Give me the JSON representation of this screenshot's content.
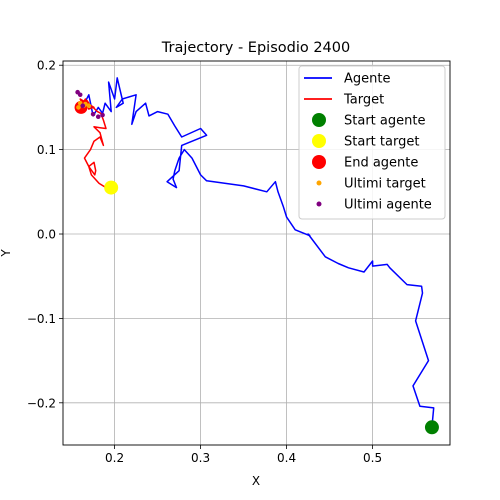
{
  "chart_data": {
    "type": "line",
    "title": "Trajectory - Episodio 2400",
    "xlabel": "X",
    "ylabel": "Y",
    "xlim": [
      0.14,
      0.59
    ],
    "ylim": [
      -0.25,
      0.205
    ],
    "xticks": [
      0.2,
      0.3,
      0.4,
      0.5
    ],
    "xtick_labels": [
      "0.2",
      "0.3",
      "0.4",
      "0.5"
    ],
    "yticks": [
      -0.2,
      -0.1,
      0.0,
      0.1,
      0.2
    ],
    "ytick_labels": [
      "−0.2",
      "−0.1",
      "0.0",
      "0.1",
      "0.2"
    ],
    "grid": true,
    "legend_position": "upper-right",
    "legend": [
      {
        "label": "Agente",
        "kind": "line",
        "color": "#0000ff"
      },
      {
        "label": "Target",
        "kind": "line",
        "color": "#ff0000"
      },
      {
        "label": "Start agente",
        "kind": "marker",
        "color": "#008000",
        "size": "large"
      },
      {
        "label": "Start target",
        "kind": "marker",
        "color": "#ffff00",
        "size": "large"
      },
      {
        "label": "End agente",
        "kind": "marker",
        "color": "#ff0000",
        "size": "large"
      },
      {
        "label": "Ultimi target",
        "kind": "marker",
        "color": "#ffa500",
        "size": "small"
      },
      {
        "label": "Ultimi agente",
        "kind": "marker",
        "color": "#800080",
        "size": "small"
      }
    ],
    "series": [
      {
        "name": "Agente",
        "color": "#0000ff",
        "points": [
          [
            0.569,
            -0.229
          ],
          [
            0.571,
            -0.206
          ],
          [
            0.555,
            -0.204
          ],
          [
            0.547,
            -0.18
          ],
          [
            0.565,
            -0.15
          ],
          [
            0.55,
            -0.103
          ],
          [
            0.558,
            -0.07
          ],
          [
            0.557,
            -0.062
          ],
          [
            0.54,
            -0.06
          ],
          [
            0.52,
            -0.04
          ],
          [
            0.517,
            -0.036
          ],
          [
            0.5,
            -0.038
          ],
          [
            0.5,
            -0.032
          ],
          [
            0.49,
            -0.045
          ],
          [
            0.472,
            -0.04
          ],
          [
            0.46,
            -0.035
          ],
          [
            0.445,
            -0.027
          ],
          [
            0.425,
            0.0
          ],
          [
            0.427,
            -0.002
          ],
          [
            0.41,
            0.005
          ],
          [
            0.4,
            0.02
          ],
          [
            0.396,
            0.033
          ],
          [
            0.39,
            0.05
          ],
          [
            0.387,
            0.062
          ],
          [
            0.377,
            0.05
          ],
          [
            0.35,
            0.057
          ],
          [
            0.307,
            0.063
          ],
          [
            0.3,
            0.07
          ],
          [
            0.29,
            0.09
          ],
          [
            0.281,
            0.1
          ],
          [
            0.275,
            0.09
          ],
          [
            0.27,
            0.075
          ],
          [
            0.268,
            0.065
          ],
          [
            0.272,
            0.055
          ],
          [
            0.261,
            0.062
          ],
          [
            0.275,
            0.075
          ],
          [
            0.278,
            0.105
          ],
          [
            0.307,
            0.117
          ],
          [
            0.3,
            0.125
          ],
          [
            0.278,
            0.115
          ],
          [
            0.27,
            0.128
          ],
          [
            0.262,
            0.142
          ],
          [
            0.25,
            0.145
          ],
          [
            0.24,
            0.14
          ],
          [
            0.236,
            0.155
          ],
          [
            0.225,
            0.145
          ],
          [
            0.22,
            0.13
          ],
          [
            0.225,
            0.165
          ],
          [
            0.209,
            0.16
          ],
          [
            0.202,
            0.15
          ],
          [
            0.21,
            0.155
          ],
          [
            0.203,
            0.185
          ],
          [
            0.2,
            0.16
          ],
          [
            0.193,
            0.18
          ],
          [
            0.196,
            0.145
          ],
          [
            0.189,
            0.155
          ],
          [
            0.186,
            0.143
          ],
          [
            0.181,
            0.15
          ],
          [
            0.175,
            0.14
          ],
          [
            0.17,
            0.165
          ],
          [
            0.165,
            0.155
          ],
          [
            0.161,
            0.15
          ]
        ]
      },
      {
        "name": "Target",
        "color": "#ff0000",
        "points": [
          [
            0.196,
            0.055
          ],
          [
            0.19,
            0.055
          ],
          [
            0.182,
            0.06
          ],
          [
            0.173,
            0.07
          ],
          [
            0.17,
            0.08
          ],
          [
            0.176,
            0.085
          ],
          [
            0.178,
            0.075
          ],
          [
            0.177,
            0.07
          ],
          [
            0.17,
            0.08
          ],
          [
            0.165,
            0.09
          ],
          [
            0.172,
            0.1
          ],
          [
            0.176,
            0.11
          ],
          [
            0.183,
            0.115
          ],
          [
            0.187,
            0.105
          ],
          [
            0.183,
            0.12
          ],
          [
            0.176,
            0.127
          ],
          [
            0.183,
            0.126
          ],
          [
            0.19,
            0.125
          ],
          [
            0.187,
            0.135
          ],
          [
            0.184,
            0.143
          ],
          [
            0.18,
            0.145
          ],
          [
            0.175,
            0.15
          ],
          [
            0.17,
            0.148
          ],
          [
            0.166,
            0.16
          ],
          [
            0.16,
            0.15
          ],
          [
            0.163,
            0.145
          ],
          [
            0.168,
            0.158
          ],
          [
            0.172,
            0.152
          ],
          [
            0.176,
            0.15
          ],
          [
            0.16,
            0.16
          ],
          [
            0.165,
            0.15
          ],
          [
            0.162,
            0.15
          ]
        ]
      }
    ],
    "markers": {
      "start_agente": [
        0.569,
        -0.229
      ],
      "start_target": [
        0.196,
        0.055
      ],
      "end_agente": [
        0.161,
        0.15
      ],
      "ultimi_target": [
        [
          0.158,
          0.15
        ],
        [
          0.16,
          0.155
        ],
        [
          0.164,
          0.152
        ],
        [
          0.166,
          0.154
        ],
        [
          0.17,
          0.152
        ]
      ],
      "ultimi_agente": [
        [
          0.157,
          0.168
        ],
        [
          0.16,
          0.165
        ],
        [
          0.163,
          0.152
        ],
        [
          0.175,
          0.142
        ],
        [
          0.181,
          0.139
        ],
        [
          0.186,
          0.141
        ]
      ]
    }
  }
}
